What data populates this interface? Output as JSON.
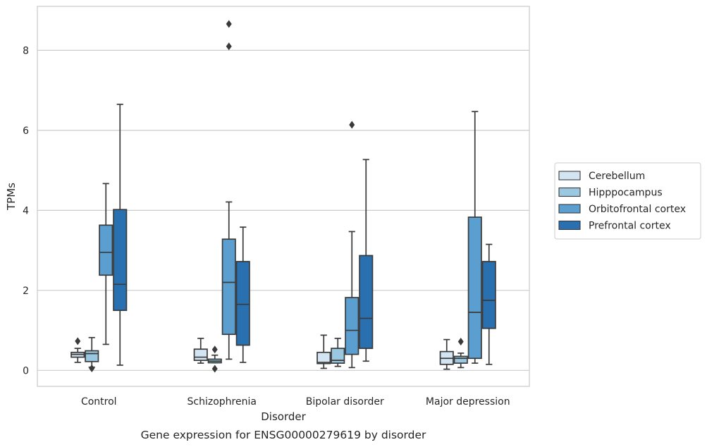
{
  "chart_data": {
    "type": "box",
    "title": "",
    "caption": "Gene expression for ENSG00000279619 by disorder",
    "xlabel": "Disorder",
    "ylabel": "TPMs",
    "ylim": [
      -0.4,
      9.1
    ],
    "yticks": [
      0,
      2,
      4,
      6,
      8
    ],
    "grid": "horizontal",
    "legend_position": "right",
    "categories": [
      "Control",
      "Schizophrenia",
      "Bipolar disorder",
      "Major depression"
    ],
    "series": [
      {
        "name": "Cerebellum",
        "color": "#d3e4f3",
        "boxes": [
          {
            "whislo": 0.2,
            "q1": 0.33,
            "med": 0.4,
            "q3": 0.45,
            "whishi": 0.55,
            "fliers": [
              0.73
            ]
          },
          {
            "whislo": 0.18,
            "q1": 0.25,
            "med": 0.33,
            "q3": 0.53,
            "whishi": 0.8,
            "fliers": []
          },
          {
            "whislo": 0.05,
            "q1": 0.17,
            "med": 0.2,
            "q3": 0.45,
            "whishi": 0.88,
            "fliers": []
          },
          {
            "whislo": 0.03,
            "q1": 0.15,
            "med": 0.3,
            "q3": 0.47,
            "whishi": 0.77,
            "fliers": []
          }
        ]
      },
      {
        "name": "Hipppocampus",
        "color": "#9ac8e0",
        "boxes": [
          {
            "whislo": 0.08,
            "q1": 0.22,
            "med": 0.42,
            "q3": 0.49,
            "whishi": 0.82,
            "fliers": [
              0.05
            ]
          },
          {
            "whislo": 0.19,
            "q1": 0.19,
            "med": 0.23,
            "q3": 0.28,
            "whishi": 0.38,
            "fliers": [
              0.52,
              0.04
            ]
          },
          {
            "whislo": 0.1,
            "q1": 0.18,
            "med": 0.25,
            "q3": 0.55,
            "whishi": 0.8,
            "fliers": []
          },
          {
            "whislo": 0.07,
            "q1": 0.18,
            "med": 0.3,
            "q3": 0.35,
            "whishi": 0.43,
            "fliers": [
              0.72
            ]
          }
        ]
      },
      {
        "name": "Orbitofrontal cortex",
        "color": "#5a9fcf",
        "boxes": [
          {
            "whislo": 0.65,
            "q1": 2.38,
            "med": 2.95,
            "q3": 3.63,
            "whishi": 4.67,
            "fliers": []
          },
          {
            "whislo": 0.28,
            "q1": 0.9,
            "med": 2.2,
            "q3": 3.28,
            "whishi": 4.21,
            "fliers": [
              8.1,
              8.66
            ]
          },
          {
            "whislo": 0.07,
            "q1": 0.4,
            "med": 1.0,
            "q3": 1.82,
            "whishi": 3.47,
            "fliers": [
              6.14
            ]
          },
          {
            "whislo": 0.18,
            "q1": 0.3,
            "med": 1.45,
            "q3": 3.83,
            "whishi": 6.47,
            "fliers": []
          }
        ]
      },
      {
        "name": "Prefrontal cortex",
        "color": "#2970b0",
        "boxes": [
          {
            "whislo": 0.13,
            "q1": 1.5,
            "med": 2.15,
            "q3": 4.02,
            "whishi": 6.65,
            "fliers": []
          },
          {
            "whislo": 0.2,
            "q1": 0.63,
            "med": 1.65,
            "q3": 2.72,
            "whishi": 3.58,
            "fliers": []
          },
          {
            "whislo": 0.23,
            "q1": 0.55,
            "med": 1.3,
            "q3": 2.87,
            "whishi": 5.27,
            "fliers": []
          },
          {
            "whislo": 0.15,
            "q1": 1.05,
            "med": 1.75,
            "q3": 2.72,
            "whishi": 3.15,
            "fliers": []
          }
        ]
      }
    ]
  }
}
